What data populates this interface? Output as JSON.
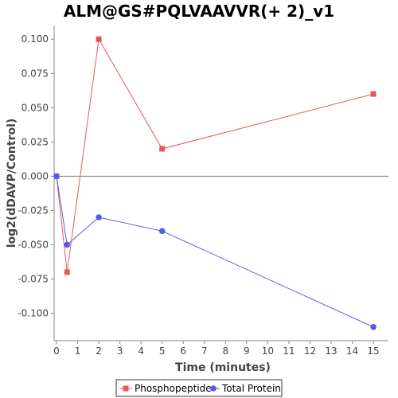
{
  "chart_data": {
    "type": "line",
    "title": "ALM@GS#PQLVAAVVR(+ 2)_v1",
    "xlabel": "Time (minutes)",
    "ylabel": "log2(dDAVP/Control)",
    "xlim": [
      0,
      15.6
    ],
    "ylim": [
      -0.12,
      0.11
    ],
    "xticks": [
      0,
      1,
      2,
      3,
      4,
      5,
      6,
      7,
      8,
      9,
      10,
      11,
      12,
      13,
      14,
      15
    ],
    "yticks": [
      -0.1,
      -0.075,
      -0.05,
      -0.025,
      0,
      0.025,
      0.05,
      0.075,
      0.1
    ],
    "ytick_labels": [
      "-0.100",
      "-0.075",
      "-0.050",
      "-0.025",
      "0.000",
      "0.025",
      "0.050",
      "0.075",
      "0.100"
    ],
    "legend_position": "bottom-center",
    "series": [
      {
        "name": "Phosphopeptide",
        "color": "#e8585a",
        "marker": "square",
        "x": [
          0,
          0.5,
          2,
          5,
          15
        ],
        "y": [
          0,
          -0.07,
          0.1,
          0.02,
          0.06
        ]
      },
      {
        "name": "Total Protein",
        "color": "#5a5ae8",
        "marker": "circle",
        "x": [
          0,
          0.5,
          2,
          5,
          15
        ],
        "y": [
          0,
          -0.05,
          -0.03,
          -0.04,
          -0.11
        ]
      }
    ]
  }
}
